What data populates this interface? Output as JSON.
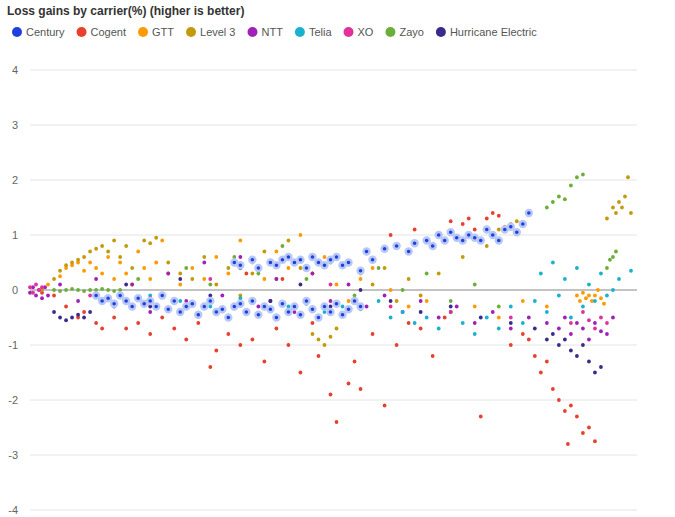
{
  "chart_data": {
    "type": "scatter",
    "title": "Loss gains by carrier(%) (higher is better)",
    "xlim": [
      0,
      101
    ],
    "ylim": [
      -4,
      4
    ],
    "yticks": [
      -4,
      -3,
      -2,
      -1,
      0,
      1,
      2,
      3,
      4
    ],
    "grid": true,
    "legend": "top",
    "tick_labels": "y",
    "series": [
      {
        "name": "Century",
        "color": "#1f3fe0",
        "marker": "ring",
        "x": [
          11,
          12,
          13,
          14,
          15,
          16,
          17,
          18,
          19,
          20,
          21,
          22,
          23,
          24,
          25,
          26,
          27,
          28,
          29,
          30,
          31,
          32,
          33,
          34,
          35,
          36,
          37,
          38,
          39,
          40,
          41,
          42,
          43,
          44,
          45,
          46,
          47,
          48,
          49,
          50,
          51,
          52,
          53,
          54,
          55,
          34,
          35,
          37,
          38,
          40,
          41,
          42,
          43,
          44,
          45,
          46,
          47,
          48,
          49,
          50,
          51,
          52,
          53,
          55,
          56,
          57,
          59,
          61,
          63,
          64,
          66,
          67,
          68,
          69,
          70,
          71,
          72,
          73,
          74,
          75,
          76,
          77,
          78,
          79,
          80,
          81,
          82,
          83
        ],
        "values": [
          -0.1,
          -0.2,
          -0.15,
          -0.25,
          -0.1,
          -0.2,
          -0.3,
          -0.15,
          -0.25,
          -0.2,
          -0.3,
          -0.1,
          -0.35,
          -0.2,
          -0.4,
          -0.3,
          -0.25,
          -0.45,
          -0.3,
          -0.2,
          -0.4,
          -0.35,
          -0.5,
          -0.3,
          -0.25,
          -0.4,
          -0.2,
          -0.45,
          -0.3,
          -0.35,
          -0.5,
          -0.25,
          -0.4,
          -0.3,
          -0.45,
          -0.2,
          -0.35,
          -0.5,
          -0.3,
          -0.4,
          -0.25,
          -0.45,
          -0.35,
          -0.2,
          -0.3,
          0.5,
          0.45,
          0.55,
          0.4,
          0.5,
          0.45,
          0.55,
          0.6,
          0.5,
          0.55,
          0.4,
          0.6,
          0.5,
          0.45,
          0.55,
          0.6,
          0.45,
          0.5,
          0.35,
          0.7,
          0.55,
          0.75,
          0.8,
          0.7,
          0.85,
          0.9,
          0.8,
          1.0,
          0.9,
          1.05,
          0.95,
          0.9,
          1.0,
          0.95,
          0.9,
          1.1,
          1.0,
          0.9,
          1.1,
          1.15,
          1.05,
          1.2,
          1.4
        ]
      },
      {
        "name": "Cogent",
        "color": "#e8402e",
        "marker": "dot",
        "x": [
          2,
          4,
          6,
          8,
          9,
          11,
          12,
          14,
          16,
          18,
          20,
          22,
          24,
          26,
          28,
          30,
          31,
          33,
          35,
          37,
          39,
          41,
          43,
          45,
          47,
          48,
          50,
          51,
          53,
          54,
          55,
          57,
          59,
          61,
          63,
          65,
          67,
          69,
          72,
          73,
          74,
          75,
          76,
          77,
          78,
          80,
          82,
          83,
          84,
          85,
          86,
          87,
          88,
          89,
          89.5,
          90,
          91,
          92,
          93,
          94,
          60,
          64,
          66,
          70,
          36,
          42
        ],
        "values": [
          -0.05,
          -0.1,
          -0.3,
          -0.5,
          -0.4,
          -0.6,
          -0.7,
          -0.5,
          -0.7,
          -0.6,
          -0.8,
          -0.5,
          -0.7,
          -0.9,
          -0.6,
          -1.4,
          -1.1,
          -0.8,
          -1.0,
          -0.9,
          -1.3,
          -0.7,
          -1.0,
          -1.5,
          -0.6,
          -1.2,
          -1.9,
          -2.4,
          -1.7,
          -1.3,
          -1.8,
          -0.8,
          -2.1,
          -1.0,
          -0.6,
          -0.7,
          -1.2,
          -0.5,
          1.2,
          1.3,
          1.1,
          -2.3,
          1.3,
          1.4,
          1.35,
          -1.0,
          -0.8,
          -0.9,
          -1.2,
          -1.5,
          -1.3,
          -1.8,
          -2.0,
          -2.2,
          -2.8,
          -2.1,
          -2.3,
          -2.6,
          -2.5,
          -2.75,
          1.0,
          1.1,
          0.9,
          1.25,
          0.3,
          0.2
        ]
      },
      {
        "name": "GTT",
        "color": "#ff9a00",
        "marker": "dot",
        "x": [
          3,
          5,
          6,
          7,
          8,
          9,
          10,
          11,
          12,
          13,
          14,
          15,
          16,
          17,
          18,
          19,
          20,
          21,
          22,
          23,
          25,
          27,
          29,
          31,
          33,
          35,
          37,
          39,
          41,
          43,
          45,
          47,
          49,
          51,
          53,
          55,
          57,
          60,
          63,
          66,
          70,
          74,
          78,
          82,
          86,
          91,
          91.5,
          92,
          92.5,
          93,
          93.5,
          94,
          94.5,
          95,
          95.5
        ],
        "values": [
          0.1,
          0.25,
          0.4,
          0.45,
          0.5,
          0.35,
          0.5,
          0.4,
          0.3,
          0.6,
          0.2,
          0.5,
          0.3,
          0.1,
          0.7,
          0.4,
          0.2,
          0.5,
          0.9,
          0.3,
          0.1,
          0.4,
          0.2,
          0.6,
          0.3,
          0.9,
          0.5,
          0.2,
          0.7,
          0.4,
          1.0,
          0.3,
          0.6,
          0.1,
          -0.2,
          0.2,
          0.4,
          0.0,
          -0.3,
          -0.2,
          -0.4,
          -0.3,
          -0.5,
          -0.2,
          -0.3,
          -0.1,
          -0.2,
          -0.05,
          -0.15,
          -0.1,
          -0.2,
          -0.1,
          0.0,
          -0.15,
          -0.25
        ]
      },
      {
        "name": "Level 3",
        "color": "#c29a0c",
        "marker": "dot",
        "x": [
          2,
          4,
          5,
          6,
          7,
          8,
          9,
          10,
          11,
          12,
          13,
          14,
          15,
          16,
          17,
          19,
          20,
          21,
          23,
          25,
          27,
          29,
          31,
          33,
          35,
          37,
          39,
          41,
          43,
          45,
          47,
          48,
          49,
          50,
          51,
          53,
          55,
          57,
          59,
          61,
          63,
          65,
          68,
          72,
          76,
          78,
          79,
          80,
          81,
          82,
          96,
          97,
          97.5,
          98,
          98.5,
          99,
          99.5,
          100
        ],
        "values": [
          0.0,
          0.2,
          0.35,
          0.45,
          0.5,
          0.55,
          0.6,
          0.7,
          0.75,
          0.8,
          0.7,
          0.9,
          0.6,
          0.8,
          0.4,
          0.9,
          0.85,
          0.95,
          0.5,
          0.3,
          0.2,
          0.6,
          0.1,
          0.4,
          -0.1,
          0.3,
          0.7,
          0.2,
          0.9,
          0.4,
          -0.8,
          -0.9,
          -1.0,
          -0.85,
          -0.7,
          0.5,
          0.3,
          0.1,
          0.4,
          -0.2,
          0.2,
          -0.1,
          0.3,
          0.6,
          0.8,
          1.1,
          1.15,
          1.2,
          1.25,
          1.2,
          1.3,
          1.5,
          1.4,
          1.6,
          1.5,
          1.7,
          2.05,
          1.4
        ]
      },
      {
        "name": "NTT",
        "color": "#a020b8",
        "marker": "dot",
        "x": [
          0,
          0.5,
          1,
          1.5,
          2,
          2.5,
          3,
          5,
          8,
          11,
          14,
          17,
          20,
          23,
          26,
          29,
          32,
          35,
          38,
          41,
          44,
          47,
          50,
          53,
          56,
          59,
          62,
          65,
          68,
          71,
          74,
          77,
          80,
          83,
          86,
          88,
          89,
          90,
          91,
          92,
          93,
          94,
          95,
          96,
          97
        ],
        "values": [
          -0.05,
          0.05,
          -0.1,
          0.0,
          -0.15,
          0.05,
          -0.1,
          0.1,
          -0.2,
          0.2,
          -0.3,
          0.1,
          -0.4,
          0.3,
          -0.2,
          0.5,
          -0.1,
          0.6,
          -0.3,
          0.2,
          -0.4,
          0.3,
          -0.2,
          0.1,
          -0.3,
          -0.1,
          -0.4,
          -0.2,
          -0.5,
          -0.3,
          -0.6,
          -0.4,
          -0.7,
          -0.5,
          -0.6,
          -0.7,
          -0.5,
          -0.8,
          -0.6,
          -0.7,
          -0.9,
          -0.6,
          -0.75,
          -0.8,
          -0.5
        ]
      },
      {
        "name": "Telia",
        "color": "#18b2cf",
        "marker": "dot",
        "x": [
          20,
          25,
          30,
          35,
          40,
          43,
          46,
          49,
          52,
          55,
          58,
          60,
          62,
          64,
          66,
          68,
          70,
          72,
          74,
          76,
          78,
          80,
          82,
          84,
          85,
          86,
          87,
          88,
          89,
          90,
          91,
          92,
          93,
          94,
          95,
          96,
          97,
          98,
          100
        ],
        "values": [
          -0.1,
          -0.2,
          -0.3,
          -0.15,
          -0.2,
          -0.3,
          -0.25,
          -0.4,
          -0.3,
          -0.35,
          -0.2,
          -0.5,
          -0.4,
          -0.6,
          -0.5,
          -0.7,
          -0.4,
          -0.6,
          -0.8,
          -0.5,
          -0.7,
          -0.3,
          -0.6,
          -0.2,
          0.3,
          -0.4,
          0.5,
          -0.1,
          0.2,
          -0.5,
          0.4,
          -0.3,
          0.1,
          -0.2,
          0.3,
          -0.1,
          0.0,
          0.2,
          0.35
        ]
      },
      {
        "name": "XO",
        "color": "#e0319c",
        "marker": "dot",
        "x": [
          0,
          0.5,
          1,
          1.5,
          2,
          10,
          20,
          30,
          40,
          50,
          60,
          70,
          80,
          90,
          92,
          93,
          94,
          95,
          96
        ],
        "values": [
          0.05,
          -0.05,
          0.1,
          0.0,
          0.05,
          -0.1,
          -0.15,
          0.2,
          -0.2,
          0.1,
          -0.3,
          -0.4,
          -0.5,
          -0.6,
          -0.4,
          -0.55,
          -0.7,
          -0.5,
          -0.6
        ]
      },
      {
        "name": "Zayo",
        "color": "#6cae3a",
        "marker": "dot",
        "x": [
          4,
          5,
          6,
          7,
          8,
          9,
          10,
          11,
          12,
          13,
          14,
          15,
          18,
          22,
          26,
          30,
          34,
          38,
          42,
          46,
          50,
          54,
          58,
          62,
          66,
          70,
          74,
          78,
          86,
          87,
          88,
          89,
          90,
          91,
          92,
          96,
          96.5,
          97,
          97.5
        ],
        "values": [
          0.0,
          -0.02,
          0.0,
          0.02,
          0.0,
          -0.02,
          0.0,
          0.0,
          0.02,
          0.0,
          -0.02,
          0.0,
          0.2,
          -0.1,
          0.4,
          0.1,
          0.6,
          0.3,
          0.8,
          0.2,
          0.5,
          -0.1,
          0.4,
          0.0,
          0.3,
          -0.2,
          0.1,
          -0.3,
          1.5,
          1.6,
          1.7,
          1.65,
          1.9,
          2.05,
          2.1,
          0.4,
          0.55,
          0.6,
          0.7
        ]
      },
      {
        "name": "Hurricane Electric",
        "color": "#3b2a8c",
        "marker": "dot",
        "x": [
          4,
          5,
          6,
          7,
          8,
          9,
          10,
          12,
          16,
          20,
          25,
          30,
          35,
          40,
          45,
          50,
          55,
          60,
          65,
          70,
          75,
          80,
          84,
          86,
          87,
          88,
          89,
          90,
          91,
          92,
          93,
          94,
          95
        ],
        "values": [
          -0.4,
          -0.5,
          -0.55,
          -0.5,
          -0.45,
          -0.5,
          -0.4,
          -0.2,
          0.1,
          -0.3,
          0.2,
          -0.1,
          0.4,
          -0.2,
          0.1,
          -0.3,
          0.0,
          -0.2,
          -0.4,
          -0.3,
          -0.5,
          -0.6,
          -0.7,
          -0.9,
          -0.8,
          -1.0,
          -0.9,
          -1.1,
          -1.2,
          -1.0,
          -1.3,
          -1.5,
          -1.4
        ]
      }
    ]
  }
}
